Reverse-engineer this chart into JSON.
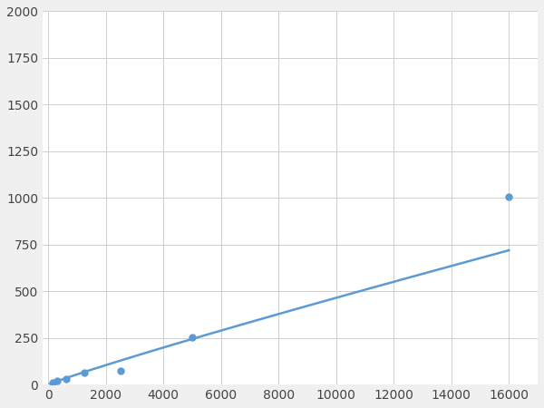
{
  "x_points": [
    156,
    312,
    625,
    1250,
    2500,
    5000,
    16000
  ],
  "y_points": [
    12,
    22,
    30,
    65,
    75,
    255,
    1005
  ],
  "marker_indices": [
    0,
    1,
    2,
    3,
    4,
    5,
    6
  ],
  "line_color": "#5b9bd5",
  "marker_color": "#5b9bd5",
  "marker_size": 5,
  "xlim": [
    -200,
    17000
  ],
  "ylim": [
    0,
    2000
  ],
  "xticks": [
    0,
    2000,
    4000,
    6000,
    8000,
    10000,
    12000,
    14000,
    16000
  ],
  "yticks": [
    0,
    250,
    500,
    750,
    1000,
    1250,
    1500,
    1750,
    2000
  ],
  "grid_color": "#d0d0d0",
  "bg_color": "#ffffff",
  "fig_bg_color": "#f0f0f0",
  "linewidth": 1.8,
  "tick_labelsize": 10
}
